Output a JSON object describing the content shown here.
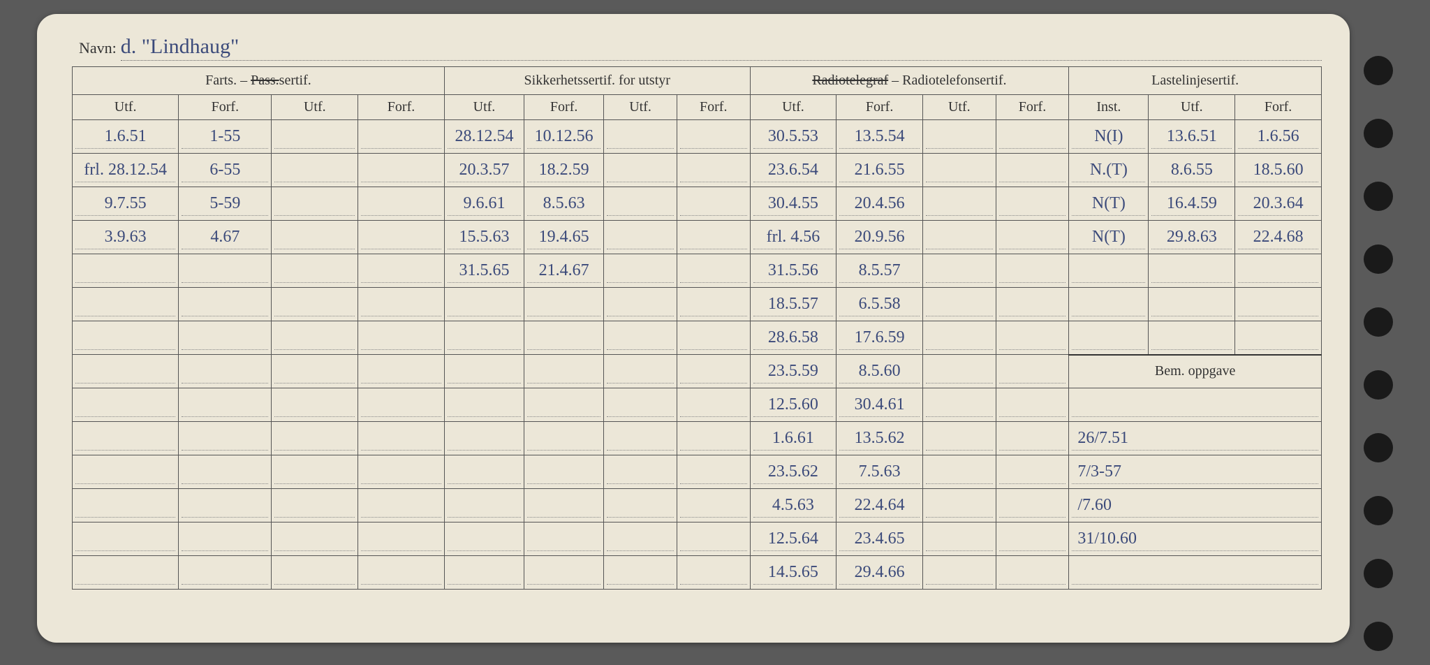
{
  "navn_label": "Navn:",
  "navn_prefix": "d.",
  "navn_value": "\"Lindhaug\"",
  "headers": {
    "group1": "Farts. – Pass.sertif.",
    "group1_strike": "Pass.",
    "group2": "Sikkerhetssertif. for utstyr",
    "group3_strike": "Radiotelegraf",
    "group3_rest": " – Radiotelefonsertif.",
    "group4": "Lastelinjesertif.",
    "utf": "Utf.",
    "forf": "Forf.",
    "inst": "Inst.",
    "bem": "Bem. oppgave"
  },
  "colors": {
    "paper": "#ece7d8",
    "ink_print": "#333333",
    "ink_hand": "#3b4a7a",
    "page_bg": "#5a5a5a"
  },
  "rows": [
    {
      "a1": "1.6.51",
      "a2": "1-55",
      "a3": "",
      "a4": "",
      "b1": "28.12.54",
      "b2": "10.12.56",
      "b3": "",
      "b4": "",
      "c1": "30.5.53",
      "c2": "13.5.54",
      "c3": "",
      "c4": "",
      "d1": "N(I)",
      "d2": "13.6.51",
      "d3": "1.6.56"
    },
    {
      "a1": "frl. 28.12.54",
      "a2": "6-55",
      "a3": "",
      "a4": "",
      "b1": "20.3.57",
      "b2": "18.2.59",
      "b3": "",
      "b4": "",
      "c1": "23.6.54",
      "c2": "21.6.55",
      "c3": "",
      "c4": "",
      "d1": "N.(T)",
      "d2": "8.6.55",
      "d3": "18.5.60"
    },
    {
      "a1": "9.7.55",
      "a2": "5-59",
      "a3": "",
      "a4": "",
      "b1": "9.6.61",
      "b2": "8.5.63",
      "b3": "",
      "b4": "",
      "c1": "30.4.55",
      "c2": "20.4.56",
      "c3": "",
      "c4": "",
      "d1": "N(T)",
      "d2": "16.4.59",
      "d3": "20.3.64"
    },
    {
      "a1": "3.9.63",
      "a2": "4.67",
      "a3": "",
      "a4": "",
      "b1": "15.5.63",
      "b2": "19.4.65",
      "b3": "",
      "b4": "",
      "c1": "frl. 4.56",
      "c2": "20.9.56",
      "c3": "",
      "c4": "",
      "d1": "N(T)",
      "d2": "29.8.63",
      "d3": "22.4.68"
    },
    {
      "a1": "",
      "a2": "",
      "a3": "",
      "a4": "",
      "b1": "31.5.65",
      "b2": "21.4.67",
      "b3": "",
      "b4": "",
      "c1": "31.5.56",
      "c2": "8.5.57",
      "c3": "",
      "c4": "",
      "d1": "",
      "d2": "",
      "d3": ""
    },
    {
      "a1": "",
      "a2": "",
      "a3": "",
      "a4": "",
      "b1": "",
      "b2": "",
      "b3": "",
      "b4": "",
      "c1": "18.5.57",
      "c2": "6.5.58",
      "c3": "",
      "c4": "",
      "d1": "",
      "d2": "",
      "d3": ""
    },
    {
      "a1": "",
      "a2": "",
      "a3": "",
      "a4": "",
      "b1": "",
      "b2": "",
      "b3": "",
      "b4": "",
      "c1": "28.6.58",
      "c2": "17.6.59",
      "c3": "",
      "c4": "",
      "d1": "",
      "d2": "",
      "d3": ""
    },
    {
      "a1": "",
      "a2": "",
      "a3": "",
      "a4": "",
      "b1": "",
      "b2": "",
      "b3": "",
      "b4": "",
      "c1": "23.5.59",
      "c2": "8.5.60",
      "c3": "",
      "c4": "",
      "d1": "BEM",
      "d2": "",
      "d3": ""
    },
    {
      "a1": "",
      "a2": "",
      "a3": "",
      "a4": "",
      "b1": "",
      "b2": "",
      "b3": "",
      "b4": "",
      "c1": "12.5.60",
      "c2": "30.4.61",
      "c3": "",
      "c4": "",
      "d1": "",
      "d2": "",
      "d3": ""
    },
    {
      "a1": "",
      "a2": "",
      "a3": "",
      "a4": "",
      "b1": "",
      "b2": "",
      "b3": "",
      "b4": "",
      "c1": "1.6.61",
      "c2": "13.5.62",
      "c3": "",
      "c4": "",
      "d1": "26/7.51",
      "d2": "",
      "d3": ""
    },
    {
      "a1": "",
      "a2": "",
      "a3": "",
      "a4": "",
      "b1": "",
      "b2": "",
      "b3": "",
      "b4": "",
      "c1": "23.5.62",
      "c2": "7.5.63",
      "c3": "",
      "c4": "",
      "d1": "7/3-57",
      "d2": "",
      "d3": ""
    },
    {
      "a1": "",
      "a2": "",
      "a3": "",
      "a4": "",
      "b1": "",
      "b2": "",
      "b3": "",
      "b4": "",
      "c1": "4.5.63",
      "c2": "22.4.64",
      "c3": "",
      "c4": "",
      "d1": "/7.60",
      "d2": "",
      "d3": ""
    },
    {
      "a1": "",
      "a2": "",
      "a3": "",
      "a4": "",
      "b1": "",
      "b2": "",
      "b3": "",
      "b4": "",
      "c1": "12.5.64",
      "c2": "23.4.65",
      "c3": "",
      "c4": "",
      "d1": "31/10.60",
      "d2": "",
      "d3": ""
    },
    {
      "a1": "",
      "a2": "",
      "a3": "",
      "a4": "",
      "b1": "",
      "b2": "",
      "b3": "",
      "b4": "",
      "c1": "14.5.65",
      "c2": "29.4.66",
      "c3": "",
      "c4": "",
      "d1": "",
      "d2": "",
      "d3": ""
    }
  ]
}
